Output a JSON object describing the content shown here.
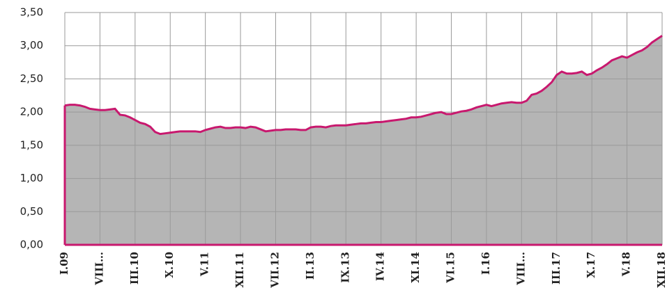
{
  "chart_data": {
    "type": "area",
    "categories": [
      "I.09",
      null,
      null,
      null,
      null,
      null,
      null,
      "VIII…",
      null,
      null,
      null,
      null,
      null,
      null,
      "III.10",
      null,
      null,
      null,
      null,
      null,
      null,
      "X.10",
      null,
      null,
      null,
      null,
      null,
      null,
      "V.11",
      null,
      null,
      null,
      null,
      null,
      null,
      "XII.11",
      null,
      null,
      null,
      null,
      null,
      null,
      "VII.12",
      null,
      null,
      null,
      null,
      null,
      null,
      "II.13",
      null,
      null,
      null,
      null,
      null,
      null,
      "IX.13",
      null,
      null,
      null,
      null,
      null,
      null,
      "IV.14",
      null,
      null,
      null,
      null,
      null,
      null,
      "XI.14",
      null,
      null,
      null,
      null,
      null,
      null,
      "VI.15",
      null,
      null,
      null,
      null,
      null,
      null,
      "I.16",
      null,
      null,
      null,
      null,
      null,
      null,
      "VIII…",
      null,
      null,
      null,
      null,
      null,
      null,
      "III.17",
      null,
      null,
      null,
      null,
      null,
      null,
      "X.17",
      null,
      null,
      null,
      null,
      null,
      null,
      "V.18",
      null,
      null,
      null,
      null,
      null,
      null,
      "XII.18"
    ],
    "series": [
      {
        "color": "#c8186e",
        "fill": "#b5b5b5",
        "values": [
          2.1,
          2.11,
          2.11,
          2.1,
          2.08,
          2.05,
          2.04,
          2.03,
          2.03,
          2.04,
          2.05,
          1.96,
          1.95,
          1.92,
          1.88,
          1.84,
          1.82,
          1.78,
          1.7,
          1.67,
          1.68,
          1.69,
          1.7,
          1.71,
          1.71,
          1.71,
          1.71,
          1.7,
          1.73,
          1.75,
          1.77,
          1.78,
          1.76,
          1.76,
          1.77,
          1.77,
          1.76,
          1.78,
          1.77,
          1.74,
          1.71,
          1.72,
          1.73,
          1.73,
          1.74,
          1.74,
          1.74,
          1.73,
          1.73,
          1.77,
          1.78,
          1.78,
          1.77,
          1.79,
          1.8,
          1.8,
          1.8,
          1.81,
          1.82,
          1.83,
          1.83,
          1.84,
          1.85,
          1.85,
          1.86,
          1.87,
          1.88,
          1.89,
          1.9,
          1.92,
          1.92,
          1.93,
          1.95,
          1.97,
          1.99,
          2.0,
          1.97,
          1.97,
          1.99,
          2.01,
          2.02,
          2.04,
          2.07,
          2.09,
          2.11,
          2.09,
          2.11,
          2.13,
          2.14,
          2.15,
          2.14,
          2.14,
          2.17,
          2.26,
          2.28,
          2.32,
          2.38,
          2.45,
          2.56,
          2.61,
          2.58,
          2.58,
          2.59,
          2.61,
          2.56,
          2.58,
          2.63,
          2.67,
          2.72,
          2.78,
          2.81,
          2.84,
          2.82,
          2.86,
          2.9,
          2.93,
          2.98,
          3.05,
          3.1,
          3.15
        ]
      }
    ],
    "ylim": [
      0,
      3.5
    ],
    "yticks": [
      {
        "value": 0,
        "label": "0,00"
      },
      {
        "value": 0.5,
        "label": "0,50"
      },
      {
        "value": 1,
        "label": "1,00"
      },
      {
        "value": 1.5,
        "label": "1,50"
      },
      {
        "value": 2,
        "label": "2,00"
      },
      {
        "value": 2.5,
        "label": "2,50"
      },
      {
        "value": 3,
        "label": "3,00"
      },
      {
        "value": 3.5,
        "label": "3,50"
      }
    ],
    "grid": true
  }
}
